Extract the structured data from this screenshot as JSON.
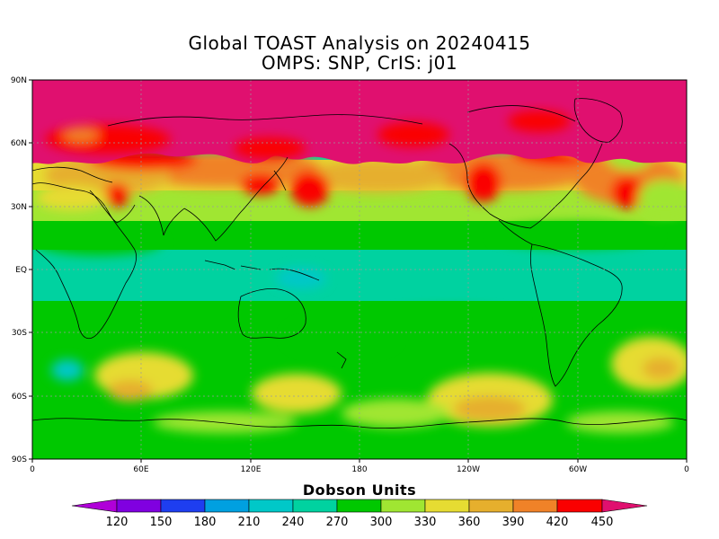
{
  "title_line1": "Global TOAST Analysis on 20240415",
  "title_line2": "OMPS: SNP, CrIS: j01",
  "colorbar": {
    "title": "Dobson Units",
    "ticks": [
      "120",
      "150",
      "180",
      "210",
      "240",
      "270",
      "300",
      "330",
      "360",
      "390",
      "420",
      "450"
    ],
    "under_color": "#b000d8",
    "over_color": "#e0106f",
    "bins": [
      "#8000e0",
      "#1e3ef0",
      "#00a0e0",
      "#00c8c8",
      "#00d2a0",
      "#00c800",
      "#a0e632",
      "#e6dc32",
      "#e6af2d",
      "#f08228",
      "#fa0000"
    ]
  },
  "map": {
    "lat_labels": [
      "90N",
      "60N",
      "30N",
      "EQ",
      "30S",
      "60S",
      "90S"
    ],
    "lon_labels": [
      "0",
      "60E",
      "120E",
      "180",
      "120W",
      "60W",
      "0"
    ],
    "ocean_color": "#00d2a0",
    "land_outline_color": "#000000",
    "gridline_color": "#9a9a9a"
  }
}
